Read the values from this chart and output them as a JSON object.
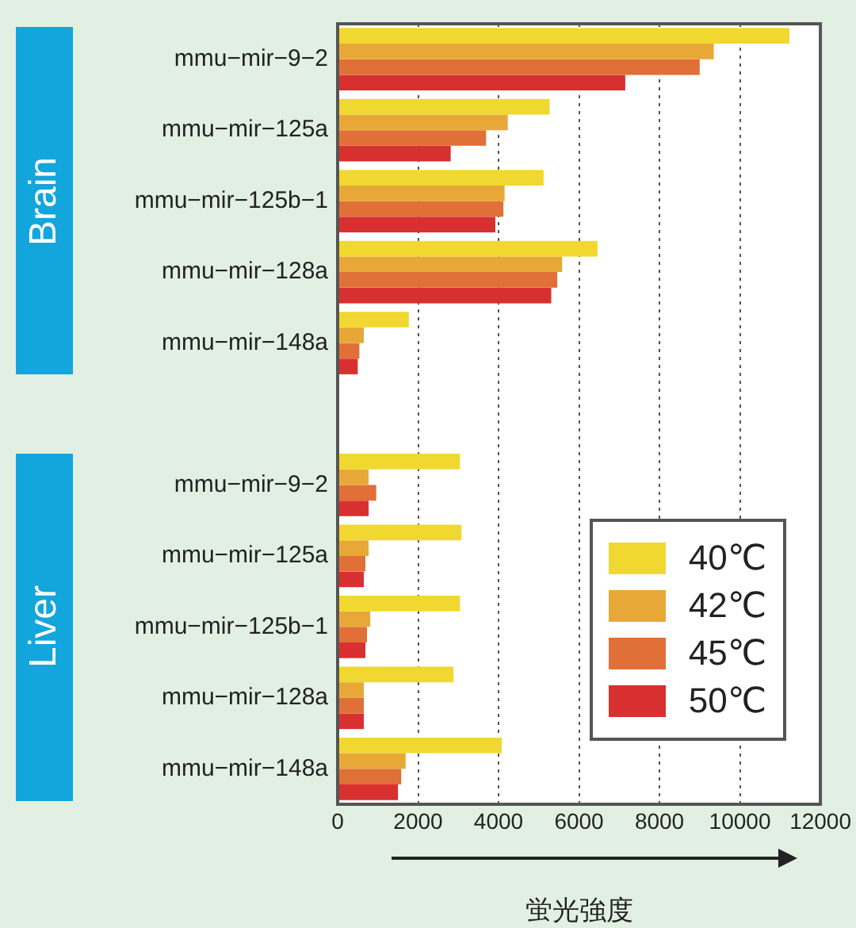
{
  "chart_data": {
    "type": "bar",
    "orientation": "horizontal",
    "xlabel": "蛍光強度",
    "annotations": [
      "Brain",
      "Liver"
    ],
    "categories": [
      "mmu−mir−9−2",
      "mmu−mir−125a",
      "mmu−mir−125b−1",
      "mmu−mir−128a",
      "mmu−mir−148a",
      null,
      "mmu−mir−9−2",
      "mmu−mir−125a",
      "mmu−mir−125b−1",
      "mmu−mir−128a",
      "mmu−mir−148a"
    ],
    "series": [
      {
        "name": "40℃",
        "color": "#f0d830",
        "values": [
          11230,
          5270,
          5120,
          6460,
          1770,
          null,
          3040,
          3080,
          3040,
          2880,
          4080
        ]
      },
      {
        "name": "42℃",
        "color": "#e8a838",
        "values": [
          9350,
          4230,
          4150,
          5580,
          650,
          null,
          770,
          770,
          810,
          650,
          1690
        ]
      },
      {
        "name": "45℃",
        "color": "#e07038",
        "values": [
          9000,
          3690,
          4120,
          5460,
          540,
          null,
          960,
          690,
          730,
          650,
          1580
        ]
      },
      {
        "name": "50℃",
        "color": "#d83030",
        "values": [
          7150,
          2810,
          3920,
          5310,
          500,
          null,
          770,
          650,
          690,
          650,
          1500
        ]
      }
    ],
    "xlim": [
      0,
      12000
    ],
    "xticks": [
      0,
      2000,
      4000,
      6000,
      8000,
      10000,
      12000
    ],
    "grid": "x",
    "legend": "bottom right"
  }
}
